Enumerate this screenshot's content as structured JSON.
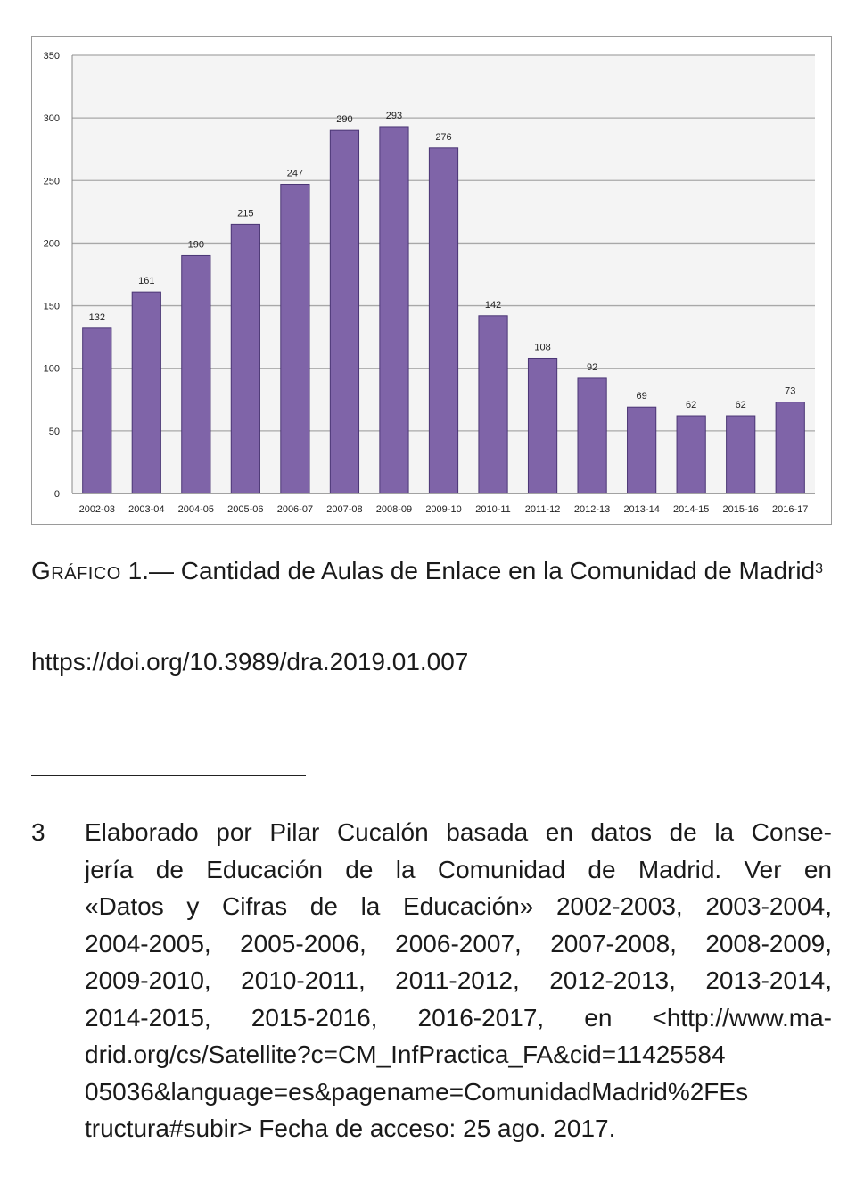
{
  "chart_data": {
    "type": "bar",
    "categories": [
      "2002-03",
      "2003-04",
      "2004-05",
      "2005-06",
      "2006-07",
      "2007-08",
      "2008-09",
      "2009-10",
      "2010-11",
      "2011-12",
      "2012-13",
      "2013-14",
      "2014-15",
      "2015-16",
      "2016-17"
    ],
    "values": [
      132,
      161,
      190,
      215,
      247,
      290,
      293,
      276,
      142,
      108,
      92,
      69,
      62,
      62,
      73
    ],
    "ylim": [
      0,
      350
    ],
    "yticks": [
      0,
      50,
      100,
      150,
      200,
      250,
      300,
      350
    ],
    "grid": true,
    "bar_color": "#7f64a8",
    "bar_stroke": "#4b3675"
  },
  "caption": {
    "label": "Gráfico",
    "number": "1.—",
    "text": "Cantidad de Aulas de Enlace en la Comunidad de Madrid",
    "note_ref": "3"
  },
  "doi": "https://doi.org/10.3989/dra.2019.01.007",
  "footnote": {
    "number": "3",
    "lines": [
      "Elaborado por Pilar Cucalón basada en datos de la Conse-",
      "jería de Educación de la Comunidad de Madrid. Ver en",
      "«Datos y Cifras de la Educación» 2002-2003, 2003-2004,",
      "2004-2005, 2005-2006, 2006-2007, 2007-2008, 2008-2009,",
      "2009-2010, 2010-2011, 2011-2012, 2012-2013, 2013-2014,",
      "2014-2015, 2015-2016, 2016-2017, en <http://www.ma-",
      "drid.org/cs/Satellite?c=CM_InfPractica_FA&cid=11425584",
      "05036&language=es&pagename=ComunidadMadrid%2FEs",
      "tructura#subir> Fecha de acceso: 25 ago. 2017."
    ]
  }
}
